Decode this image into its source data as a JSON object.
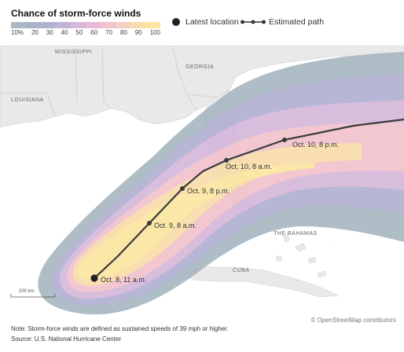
{
  "legend": {
    "title": "Chance of storm-force winds",
    "scale_labels": [
      "10%",
      "20",
      "30",
      "40",
      "50",
      "60",
      "70",
      "80",
      "90",
      "100"
    ],
    "scale_colors": [
      "#a9b8c3",
      "#aab3c8",
      "#b3b0d2",
      "#c3b3d9",
      "#d6b8db",
      "#e8bcd8",
      "#f1c3cc",
      "#f5cfbf",
      "#f8dcab",
      "#fbe6a0"
    ],
    "latest_location_label": "Latest location",
    "estimated_path_label": "Estimated path"
  },
  "map": {
    "region_labels": {
      "mississippi": "MISSISSIPPI",
      "georgia": "GEORGIA",
      "louisiana": "LOUISIANA",
      "bahamas": "THE BAHAMAS",
      "cuba": "CUBA"
    },
    "path_points": [
      {
        "label": "Oct. 8, 11 a.m."
      },
      {
        "label": "Oct. 9, 8 a.m."
      },
      {
        "label": "Oct. 9, 8 p.m."
      },
      {
        "label": "Oct. 10, 8 a.m."
      },
      {
        "label": "Oct. 10, 8 p.m."
      }
    ],
    "scale_label": "200 km",
    "attribution": "© OpenStreetMap contributors"
  },
  "footer": {
    "note": "Note: Storm-force winds are defined as sustained speeds of 39 mph or higher.",
    "source": "Source: U.S. National Hurricane Center"
  }
}
